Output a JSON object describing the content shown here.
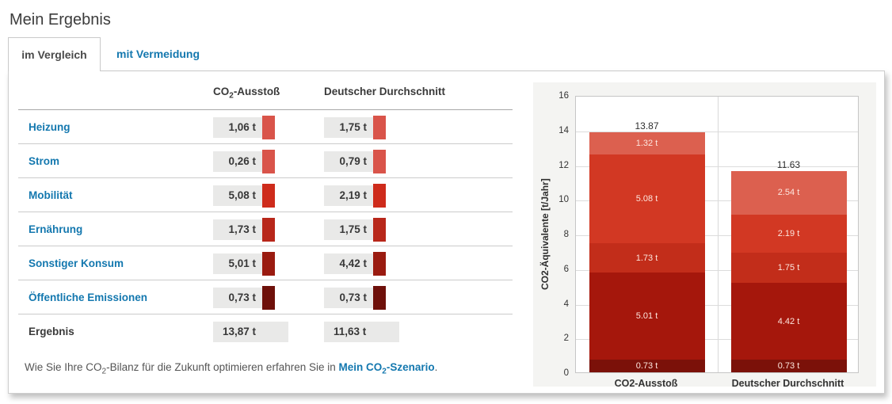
{
  "page": {
    "title": "Mein Ergebnis"
  },
  "tabs": {
    "compare": {
      "label": "im Vergleich",
      "active": true
    },
    "avoidance": {
      "label": "mit Vermeidung",
      "active": false
    }
  },
  "colors": {
    "link_blue": "#1478af",
    "value_box_bg": "#e9e9e8"
  },
  "table": {
    "header_col1": {
      "pre": "CO",
      "sub": "2",
      "post": "-Ausstoß"
    },
    "header_col2": "Deutscher Durchschnitt",
    "rows": [
      {
        "label": "Heizung",
        "value1": "1,06 t",
        "value2": "1,75 t",
        "color": "#d9544a"
      },
      {
        "label": "Strom",
        "value1": "0,26 t",
        "value2": "0,79 t",
        "color": "#d9544a"
      },
      {
        "label": "Mobilität",
        "value1": "5,08 t",
        "value2": "2,19 t",
        "color": "#ce2b1b"
      },
      {
        "label": "Ernährung",
        "value1": "1,73 t",
        "value2": "1,75 t",
        "color": "#b8271a"
      },
      {
        "label": "Sonstiger Konsum",
        "value1": "5,01 t",
        "value2": "4,42 t",
        "color": "#9a1b10"
      },
      {
        "label": "Öffentliche Emissionen",
        "value1": "0,73 t",
        "value2": "0,73 t",
        "color": "#6e100a"
      }
    ],
    "result_row": {
      "label": "Ergebnis",
      "value1": "13,87 t",
      "value2": "11,63 t"
    }
  },
  "footer": {
    "pre": "Wie Sie Ihre CO",
    "sub": "2",
    "mid": "-Bilanz für die Zukunft optimieren erfahren Sie in ",
    "link_pre": "Mein CO",
    "link_sub": "2",
    "link_post": "-Szenario",
    "suffix": "."
  },
  "chart_data": {
    "type": "bar",
    "stacked": true,
    "categories": [
      "CO2-Ausstoß",
      "Deutscher Durchschnitt"
    ],
    "series": [
      {
        "name": "Öffentliche Emissionen",
        "values": [
          0.73,
          0.73
        ],
        "labels": [
          "0.73 t",
          "0.73 t"
        ],
        "color": "#7b1109"
      },
      {
        "name": "Sonstiger Konsum",
        "values": [
          5.01,
          4.42
        ],
        "labels": [
          "5.01 t",
          "4.42 t"
        ],
        "color": "#a5170c"
      },
      {
        "name": "Ernährung",
        "values": [
          1.73,
          1.75
        ],
        "labels": [
          "1.73 t",
          "1.75 t"
        ],
        "color": "#c22d1a"
      },
      {
        "name": "Mobilität",
        "values": [
          5.08,
          2.19
        ],
        "labels": [
          "5.08 t",
          "2.19 t"
        ],
        "color": "#d23823"
      },
      {
        "name": "Heizung + Strom",
        "values": [
          1.32,
          2.54
        ],
        "labels": [
          "1.32 t",
          "2.54 t"
        ],
        "color": "#dc604f"
      }
    ],
    "totals": [
      "13.87",
      "11.63"
    ],
    "title": "",
    "xlabel": "",
    "ylabel": "CO2-Äquivalente [t/Jahr]",
    "ylim": [
      0,
      16
    ],
    "yticks": [
      0,
      2,
      4,
      6,
      8,
      10,
      12,
      14,
      16
    ],
    "grid": true,
    "legend": "none"
  }
}
